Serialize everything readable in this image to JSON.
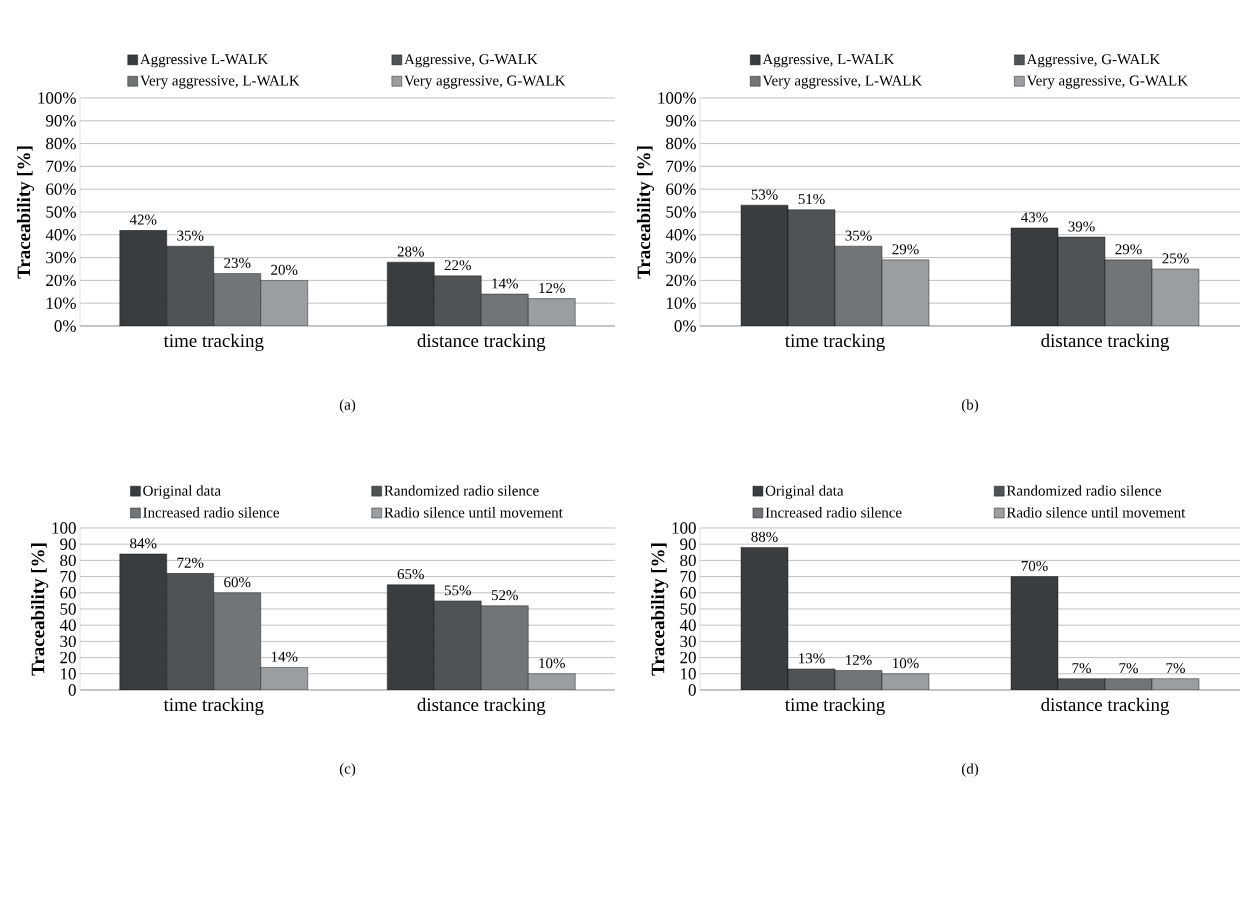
{
  "chart_data": [
    {
      "type": "bar",
      "categories": [
        "time tracking",
        "distance tracking"
      ],
      "ylabel": "Traceability [%]",
      "ylim": [
        0,
        100
      ],
      "yticks": [
        {
          "value": 0,
          "label": "0%"
        },
        {
          "value": 10,
          "label": "10%"
        },
        {
          "value": 20,
          "label": "20%"
        },
        {
          "value": 30,
          "label": "30%"
        },
        {
          "value": 40,
          "label": "40%"
        },
        {
          "value": 50,
          "label": "50%"
        },
        {
          "value": 60,
          "label": "60%"
        },
        {
          "value": 70,
          "label": "70%"
        },
        {
          "value": 80,
          "label": "80%"
        },
        {
          "value": 90,
          "label": "90%"
        },
        {
          "value": 100,
          "label": "100%"
        }
      ],
      "grid": "y",
      "legend": "top",
      "annotations": [
        "(a)"
      ],
      "series": [
        {
          "name": "Aggressive L-WALK",
          "color": "#3a3d40",
          "values": [
            42,
            28
          ],
          "value_labels": [
            "42%",
            "28%"
          ]
        },
        {
          "name": "Aggressive, G-WALK",
          "color": "#505355",
          "values": [
            35,
            22
          ],
          "value_labels": [
            "35%",
            "22%"
          ]
        },
        {
          "name": "Very aggressive, L-WALK",
          "color": "#727578",
          "values": [
            23,
            14
          ],
          "value_labels": [
            "23%",
            "14%"
          ]
        },
        {
          "name": "Very aggressive, G-WALK",
          "color": "#9b9ea0",
          "values": [
            20,
            12
          ],
          "value_labels": [
            "20%",
            "12%"
          ]
        }
      ]
    },
    {
      "type": "bar",
      "categories": [
        "time tracking",
        "distance tracking"
      ],
      "ylabel": "Traceability [%]",
      "ylim": [
        0,
        100
      ],
      "yticks": [
        {
          "value": 0,
          "label": "0%"
        },
        {
          "value": 10,
          "label": "10%"
        },
        {
          "value": 20,
          "label": "20%"
        },
        {
          "value": 30,
          "label": "30%"
        },
        {
          "value": 40,
          "label": "40%"
        },
        {
          "value": 50,
          "label": "50%"
        },
        {
          "value": 60,
          "label": "60%"
        },
        {
          "value": 70,
          "label": "70%"
        },
        {
          "value": 80,
          "label": "80%"
        },
        {
          "value": 90,
          "label": "90%"
        },
        {
          "value": 100,
          "label": "100%"
        }
      ],
      "grid": "y",
      "legend": "top",
      "annotations": [
        "(b)"
      ],
      "series": [
        {
          "name": "Aggressive, L-WALK",
          "color": "#3a3d40",
          "values": [
            53,
            43
          ],
          "value_labels": [
            "53%",
            "43%"
          ]
        },
        {
          "name": "Aggressive, G-WALK",
          "color": "#505355",
          "values": [
            51,
            39
          ],
          "value_labels": [
            "51%",
            "39%"
          ]
        },
        {
          "name": "Very aggressive, L-WALK",
          "color": "#727578",
          "values": [
            35,
            29
          ],
          "value_labels": [
            "35%",
            "29%"
          ]
        },
        {
          "name": "Very aggressive, G-WALK",
          "color": "#9b9ea0",
          "values": [
            29,
            25
          ],
          "value_labels": [
            "29%",
            "25%"
          ]
        }
      ]
    },
    {
      "type": "bar",
      "categories": [
        "time tracking",
        "distance tracking"
      ],
      "ylabel": "Traceability [%]",
      "ylim": [
        0,
        100
      ],
      "yticks": [
        0,
        10,
        20,
        30,
        40,
        50,
        60,
        70,
        80,
        90,
        100
      ],
      "grid": "y",
      "legend": "top",
      "annotations": [
        "(c)"
      ],
      "series": [
        {
          "name": "Original data",
          "color": "#3a3d40",
          "values": [
            84,
            65
          ],
          "value_labels": [
            "84%",
            "65%"
          ]
        },
        {
          "name": "Randomized radio silence",
          "color": "#505355",
          "values": [
            72,
            55
          ],
          "value_labels": [
            "72%",
            "55%"
          ]
        },
        {
          "name": "Increased radio silence",
          "color": "#727578",
          "values": [
            60,
            52
          ],
          "value_labels": [
            "60%",
            "52%"
          ]
        },
        {
          "name": "Radio silence until movement",
          "color": "#9b9ea0",
          "values": [
            14,
            10
          ],
          "value_labels": [
            "14%",
            "10%"
          ]
        }
      ]
    },
    {
      "type": "bar",
      "categories": [
        "time tracking",
        "distance tracking"
      ],
      "ylabel": "Traceability [%]",
      "ylim": [
        0,
        100
      ],
      "yticks": [
        0,
        10,
        20,
        30,
        40,
        50,
        60,
        70,
        80,
        90,
        100
      ],
      "grid": "y",
      "legend": "top",
      "annotations": [
        "(d)"
      ],
      "series": [
        {
          "name": "Original data",
          "color": "#3a3d40",
          "values": [
            88,
            70
          ],
          "value_labels": [
            "88%",
            "70%"
          ]
        },
        {
          "name": "Randomized radio silence",
          "color": "#505355",
          "values": [
            13,
            7
          ],
          "value_labels": [
            "13%",
            "7%"
          ]
        },
        {
          "name": "Increased radio silence",
          "color": "#727578",
          "values": [
            12,
            7
          ],
          "value_labels": [
            "12%",
            "7%"
          ]
        },
        {
          "name": "Radio silence until movement",
          "color": "#9b9ea0",
          "values": [
            10,
            7
          ],
          "value_labels": [
            "10%",
            "7%"
          ]
        }
      ]
    }
  ]
}
